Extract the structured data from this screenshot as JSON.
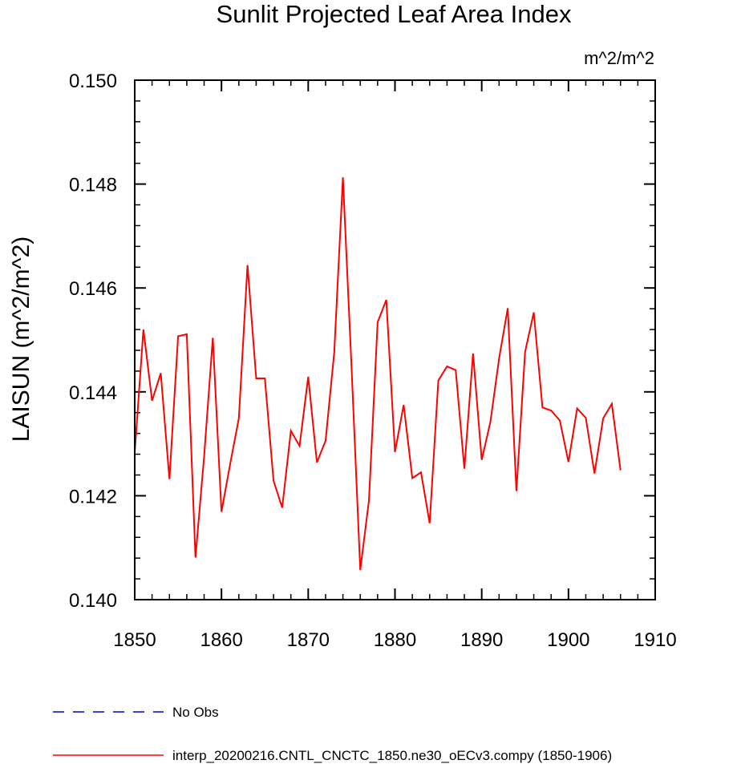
{
  "chart_data": {
    "type": "line",
    "title": "Sunlit Projected Leaf Area Index",
    "units": "m^2/m^2",
    "xlabel": "",
    "ylabel": "LAISUN  (m^2/m^2)",
    "xlim": [
      1850,
      1910
    ],
    "ylim": [
      0.14,
      0.15
    ],
    "x_ticks": [
      1850,
      1860,
      1870,
      1880,
      1890,
      1900,
      1910
    ],
    "y_ticks": [
      "0.140",
      "0.142",
      "0.144",
      "0.146",
      "0.148",
      "0.150"
    ],
    "grid": false,
    "legend_position": "bottom",
    "series": [
      {
        "name": "No Obs",
        "color": "#0000cc",
        "style": "dashed",
        "x": [],
        "values": []
      },
      {
        "name": "interp_20200216.CNTL_CNCTC_1850.ne30_oECv3.compy (1850-1906)",
        "color": "#ff0000",
        "style": "solid",
        "x": [
          1850,
          1851,
          1852,
          1853,
          1854,
          1855,
          1856,
          1857,
          1858,
          1859,
          1860,
          1861,
          1862,
          1863,
          1864,
          1865,
          1866,
          1867,
          1868,
          1869,
          1870,
          1871,
          1872,
          1873,
          1874,
          1875,
          1876,
          1877,
          1878,
          1879,
          1880,
          1881,
          1882,
          1883,
          1884,
          1885,
          1886,
          1887,
          1888,
          1889,
          1890,
          1891,
          1892,
          1893,
          1894,
          1895,
          1896,
          1897,
          1898,
          1899,
          1900,
          1901,
          1902,
          1903,
          1904,
          1905,
          1906
        ],
        "values": [
          0.14283,
          0.1452,
          0.14383,
          0.14436,
          0.14232,
          0.14507,
          0.14511,
          0.14081,
          0.14276,
          0.14504,
          0.14169,
          0.14261,
          0.14349,
          0.14644,
          0.14426,
          0.14426,
          0.14229,
          0.14177,
          0.14325,
          0.14296,
          0.14429,
          0.14264,
          0.14306,
          0.14476,
          0.14813,
          0.14445,
          0.14057,
          0.14191,
          0.14534,
          0.14577,
          0.14284,
          0.14375,
          0.14234,
          0.14245,
          0.14147,
          0.14422,
          0.14449,
          0.14442,
          0.14252,
          0.14474,
          0.14269,
          0.14342,
          0.14464,
          0.14561,
          0.14209,
          0.14477,
          0.14553,
          0.1437,
          0.14364,
          0.14345,
          0.14265,
          0.14368,
          0.1435,
          0.14243,
          0.14349,
          0.14377,
          0.14249
        ]
      }
    ]
  }
}
